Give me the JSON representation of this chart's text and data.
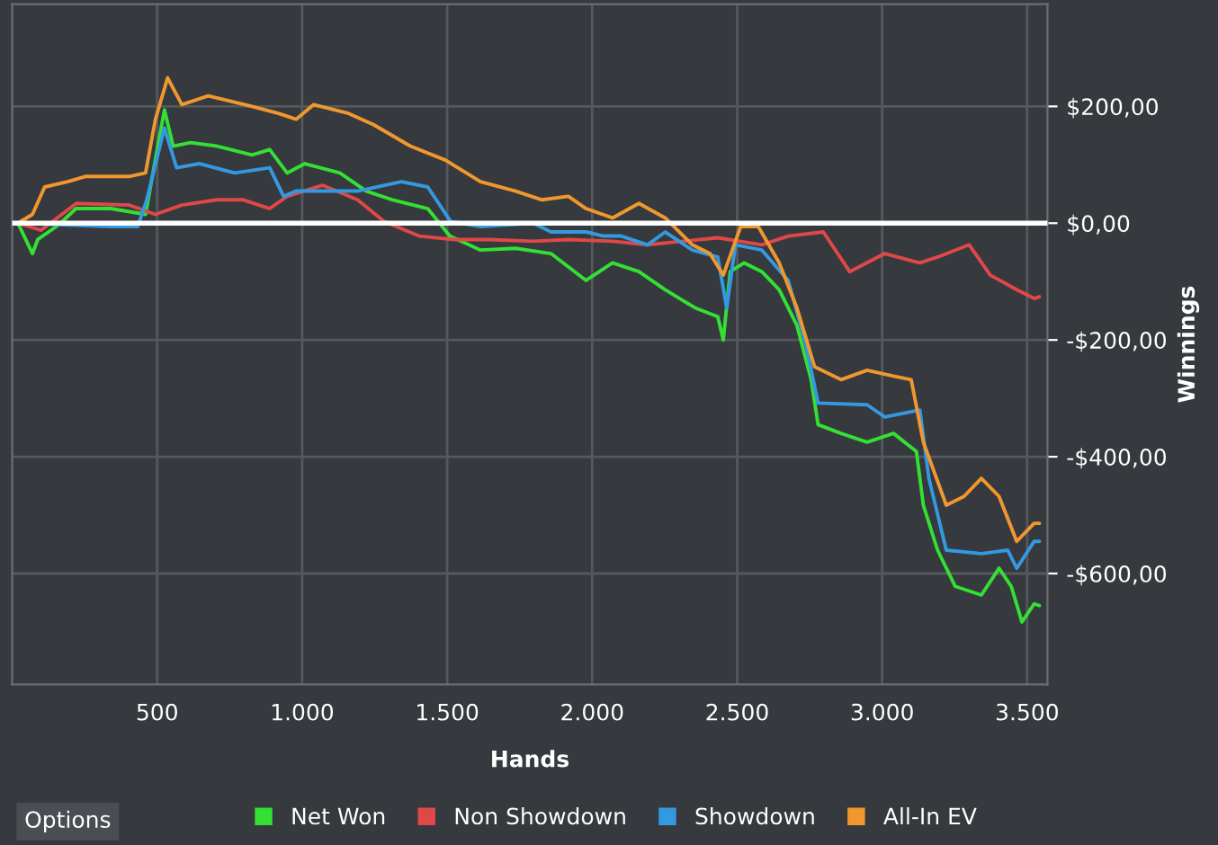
{
  "chart_data": {
    "type": "line",
    "xlabel": "Hands",
    "ylabel": "Winnings",
    "xlim": [
      0,
      3570
    ],
    "ylim": [
      -790,
      375
    ],
    "xticks": [
      {
        "value": 500,
        "label": "500"
      },
      {
        "value": 1000,
        "label": "1.000"
      },
      {
        "value": 1500,
        "label": "1.500"
      },
      {
        "value": 2000,
        "label": "2.000"
      },
      {
        "value": 2500,
        "label": "2.500"
      },
      {
        "value": 3000,
        "label": "3.000"
      },
      {
        "value": 3500,
        "label": "3.500"
      }
    ],
    "yticks": [
      {
        "value": 200,
        "label": "$200,00"
      },
      {
        "value": 0,
        "label": "$0,00"
      },
      {
        "value": -200,
        "label": "-$200,00"
      },
      {
        "value": -400,
        "label": "-$400,00"
      },
      {
        "value": -600,
        "label": "-$600,00"
      }
    ],
    "grid": true,
    "legend": "bottom",
    "annotations": [
      "Options"
    ],
    "ref_lines": [
      {
        "axis": "y",
        "value": 0,
        "color": "#ffffff"
      }
    ],
    "series": [
      {
        "name": "Net Won",
        "color": "#33e033",
        "x": [
          20,
          70,
          88,
          160,
          220,
          340,
          460,
          480,
          525,
          555,
          615,
          706,
          827,
          888,
          948,
          1009,
          1130,
          1221,
          1312,
          1433,
          1509,
          1615,
          1736,
          1858,
          1979,
          2070,
          2161,
          2252,
          2355,
          2433,
          2452,
          2476,
          2524,
          2585,
          2645,
          2706,
          2755,
          2779,
          2858,
          2948,
          3039,
          3118,
          3142,
          3191,
          3252,
          3342,
          3403,
          3445,
          3482,
          3524,
          3542
        ],
        "values": [
          0,
          -52,
          -28,
          -3,
          25,
          25,
          15,
          71,
          194,
          132,
          138,
          132,
          117,
          126,
          86,
          102,
          86,
          55,
          40,
          25,
          -22,
          -46,
          -43,
          -52,
          -98,
          -68,
          -83,
          -114,
          -145,
          -160,
          -200,
          -83,
          -68,
          -83,
          -114,
          -175,
          -268,
          -345,
          -360,
          -375,
          -360,
          -391,
          -483,
          -560,
          -622,
          -637,
          -591,
          -622,
          -683,
          -652,
          -655
        ]
      },
      {
        "name": "Non Showdown",
        "color": "#e04848",
        "x": [
          20,
          100,
          221,
          403,
          494,
          585,
          706,
          797,
          888,
          948,
          1070,
          1191,
          1282,
          1403,
          1524,
          1645,
          1797,
          1918,
          2070,
          2191,
          2312,
          2433,
          2585,
          2676,
          2797,
          2888,
          3009,
          3130,
          3191,
          3300,
          3373,
          3464,
          3524,
          3542
        ],
        "values": [
          0,
          -12,
          34,
          31,
          15,
          31,
          40,
          40,
          25,
          46,
          65,
          40,
          3,
          -22,
          -28,
          -28,
          -31,
          -28,
          -31,
          -37,
          -31,
          -25,
          -37,
          -22,
          -15,
          -83,
          -52,
          -68,
          -58,
          -37,
          -89,
          -114,
          -129,
          -126
        ]
      },
      {
        "name": "Showdown",
        "color": "#3399e0",
        "x": [
          20,
          340,
          433,
          464,
          525,
          567,
          646,
          767,
          888,
          936,
          979,
          1191,
          1342,
          1433,
          1512,
          1615,
          1797,
          1858,
          1979,
          2039,
          2100,
          2191,
          2252,
          2345,
          2433,
          2464,
          2494,
          2585,
          2676,
          2736,
          2779,
          2948,
          3009,
          3130,
          3161,
          3221,
          3342,
          3433,
          3464,
          3524,
          3542
        ],
        "values": [
          0,
          -6,
          -6,
          40,
          163,
          95,
          102,
          86,
          95,
          46,
          55,
          55,
          71,
          62,
          3,
          -6,
          0,
          -15,
          -15,
          -22,
          -22,
          -37,
          -15,
          -46,
          -58,
          -145,
          -37,
          -46,
          -98,
          -206,
          -308,
          -311,
          -332,
          -320,
          -437,
          -560,
          -566,
          -560,
          -591,
          -545,
          -545
        ]
      },
      {
        "name": "All-In EV",
        "color": "#f0982e",
        "x": [
          20,
          70,
          112,
          191,
          252,
          403,
          460,
          494,
          536,
          585,
          676,
          827,
          918,
          979,
          1039,
          1160,
          1245,
          1373,
          1494,
          1615,
          1736,
          1827,
          1918,
          1979,
          2070,
          2161,
          2252,
          2345,
          2406,
          2452,
          2512,
          2573,
          2645,
          2706,
          2767,
          2858,
          2948,
          3039,
          3100,
          3142,
          3221,
          3282,
          3342,
          3403,
          3464,
          3524,
          3542
        ],
        "values": [
          0,
          15,
          62,
          71,
          80,
          80,
          86,
          178,
          249,
          203,
          218,
          200,
          188,
          178,
          203,
          188,
          169,
          132,
          108,
          71,
          55,
          40,
          46,
          25,
          9,
          34,
          9,
          -37,
          -52,
          -89,
          -6,
          -6,
          -68,
          -145,
          -246,
          -268,
          -252,
          -262,
          -268,
          -375,
          -483,
          -468,
          -437,
          -468,
          -545,
          -514,
          -514
        ]
      }
    ]
  }
}
